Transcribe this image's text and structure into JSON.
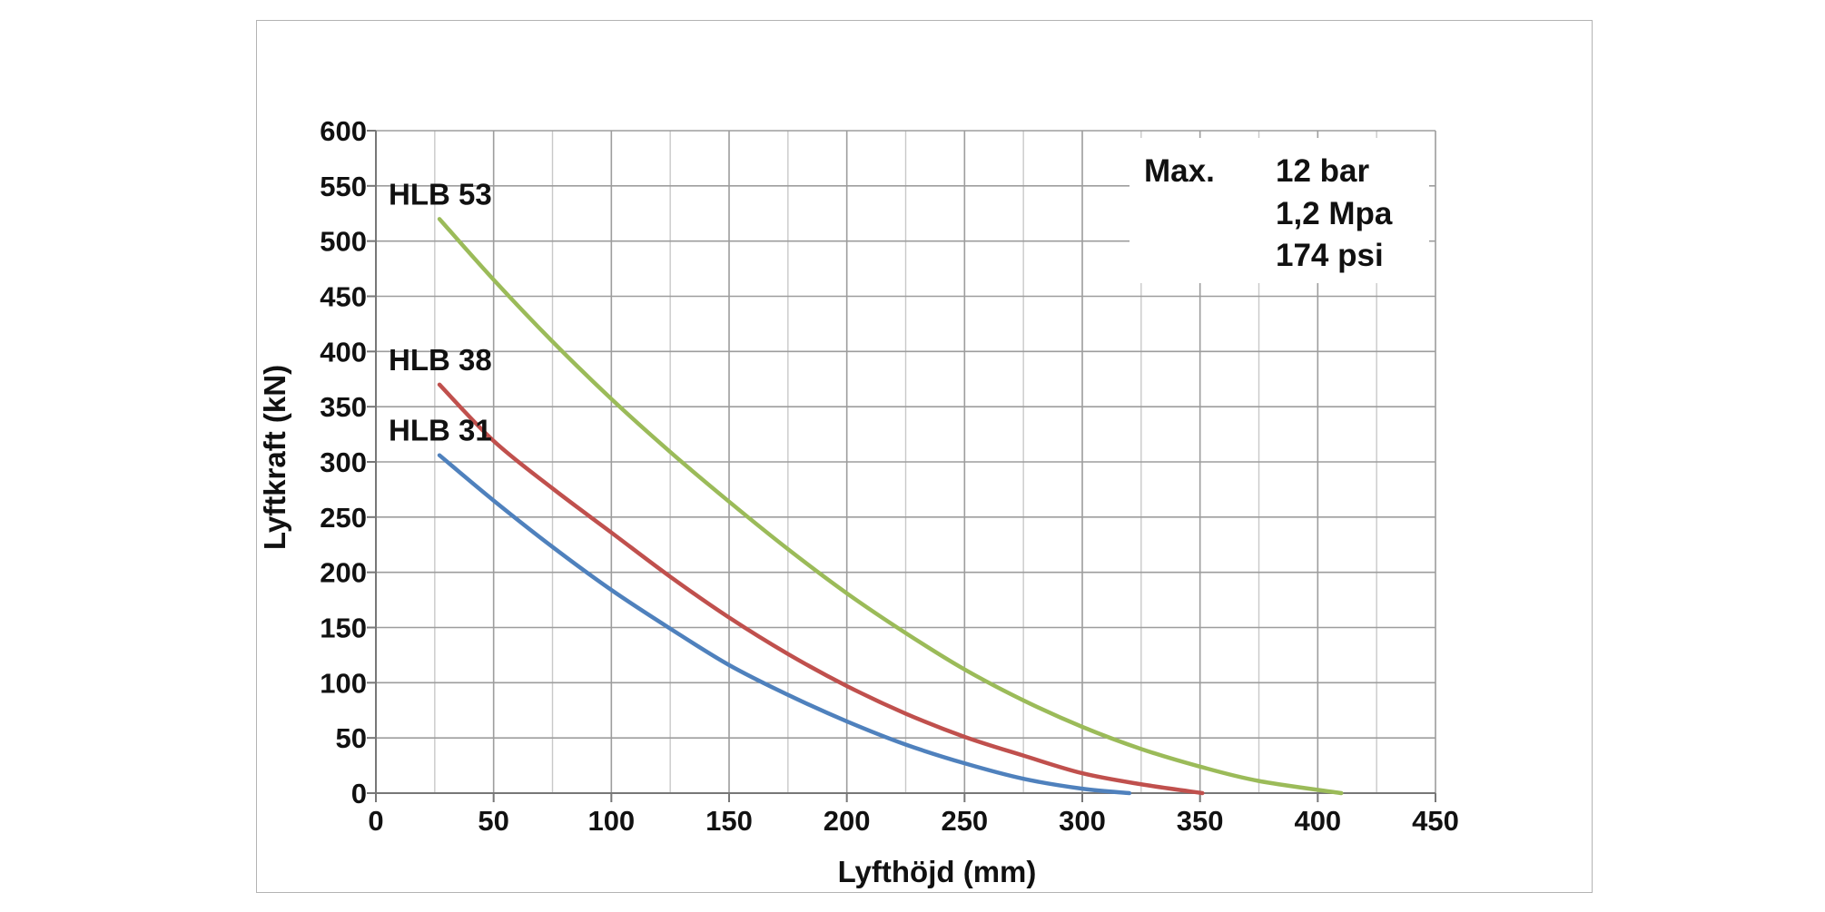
{
  "chart_data": {
    "type": "line",
    "title": "",
    "xlabel": "Lyfthöjd (mm)",
    "ylabel": "Lyftkraft (kN)",
    "xlim": [
      0,
      450
    ],
    "ylim": [
      0,
      600
    ],
    "x_ticks": [
      0,
      50,
      100,
      150,
      200,
      250,
      300,
      350,
      400,
      450
    ],
    "y_ticks": [
      0,
      50,
      100,
      150,
      200,
      250,
      300,
      350,
      400,
      450,
      500,
      550,
      600
    ],
    "x_tick_labels": [
      "0",
      "50",
      "100",
      "150",
      "200",
      "250",
      "300",
      "350",
      "400",
      "450"
    ],
    "y_tick_labels": [
      "0",
      "50",
      "100",
      "150",
      "200",
      "250",
      "300",
      "350",
      "400",
      "450",
      "500",
      "550",
      "600"
    ],
    "grid": true,
    "legend": "none",
    "series": [
      {
        "name": "HLB 31",
        "color": "#4f81bd",
        "x": [
          27,
          50,
          75,
          100,
          125,
          150,
          175,
          200,
          225,
          250,
          275,
          300,
          320
        ],
        "y": [
          306,
          265,
          223,
          184,
          149,
          116,
          89,
          65,
          44,
          27,
          13,
          4,
          0
        ]
      },
      {
        "name": "HLB 38",
        "color": "#c0504d",
        "x": [
          27,
          50,
          75,
          100,
          125,
          150,
          175,
          200,
          225,
          250,
          275,
          300,
          325,
          351
        ],
        "y": [
          370,
          319,
          276,
          236,
          196,
          159,
          126,
          97,
          72,
          51,
          34,
          18,
          8,
          0
        ]
      },
      {
        "name": "HLB 53",
        "color": "#9bbb59",
        "x": [
          27,
          50,
          75,
          100,
          125,
          150,
          175,
          200,
          225,
          250,
          275,
          300,
          325,
          350,
          375,
          410
        ],
        "y": [
          520,
          465,
          409,
          357,
          309,
          264,
          221,
          181,
          145,
          112,
          84,
          60,
          40,
          24,
          11,
          0
        ]
      }
    ],
    "annotation": {
      "label": "Max.",
      "lines": [
        "12 bar",
        "1,2 Mpa",
        "174 psi"
      ]
    }
  }
}
